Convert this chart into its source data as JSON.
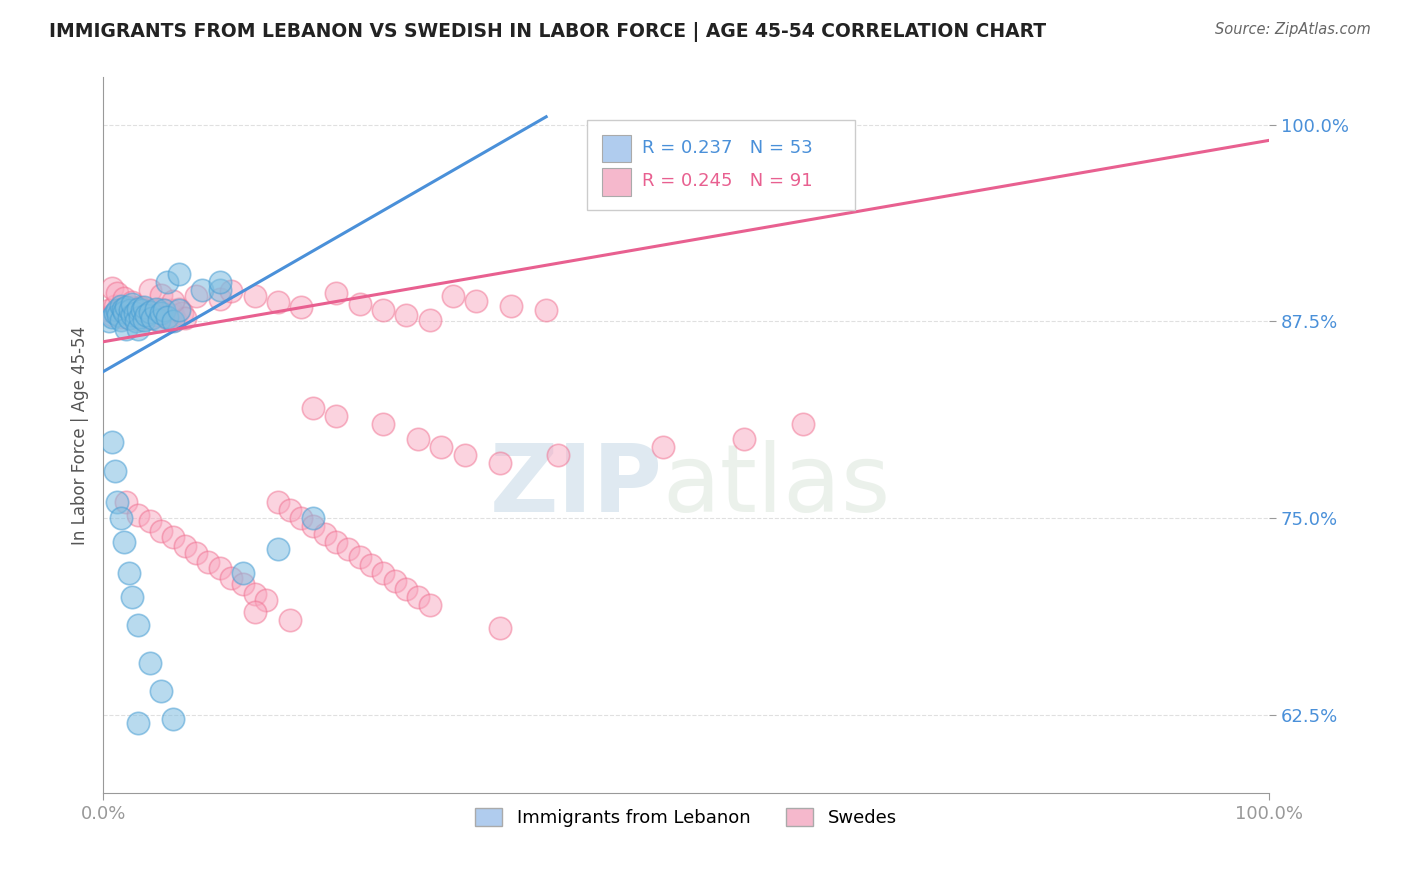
{
  "title": "IMMIGRANTS FROM LEBANON VS SWEDISH IN LABOR FORCE | AGE 45-54 CORRELATION CHART",
  "source_text": "Source: ZipAtlas.com",
  "ylabel": "In Labor Force | Age 45-54",
  "watermark_zip": "ZIP",
  "watermark_atlas": "atlas",
  "xlim": [
    0.0,
    1.0
  ],
  "ylim": [
    0.575,
    1.03
  ],
  "x_tick_labels": [
    "0.0%",
    "100.0%"
  ],
  "x_tick_positions": [
    0.0,
    1.0
  ],
  "y_tick_labels": [
    "62.5%",
    "75.0%",
    "87.5%",
    "100.0%"
  ],
  "y_tick_positions": [
    0.625,
    0.75,
    0.875,
    1.0
  ],
  "legend_label1": "Immigrants from Lebanon",
  "legend_label2": "Swedes",
  "R1": 0.237,
  "N1": 53,
  "R2": 0.245,
  "N2": 91,
  "color1": "#7fbde0",
  "color2": "#f9a8c0",
  "color1_edge": "#4a9fd4",
  "color2_edge": "#f07090",
  "line_color1": "#4a90d9",
  "line_color2": "#e86090",
  "title_color": "#222222",
  "source_color": "#666666",
  "axis_color": "#999999",
  "grid_color": "#dddddd",
  "background_color": "#ffffff",
  "legend_box_color1": "#b0ccee",
  "legend_box_color2": "#f5b8cc",
  "blue_x": [
    0.005,
    0.008,
    0.01,
    0.012,
    0.013,
    0.015,
    0.015,
    0.017,
    0.018,
    0.02,
    0.02,
    0.022,
    0.023,
    0.025,
    0.025,
    0.027,
    0.028,
    0.03,
    0.03,
    0.032,
    0.033,
    0.035,
    0.035,
    0.037,
    0.04,
    0.042,
    0.045,
    0.048,
    0.05,
    0.052,
    0.055,
    0.06,
    0.065,
    0.008,
    0.01,
    0.012,
    0.015,
    0.018,
    0.022,
    0.025,
    0.03,
    0.04,
    0.05,
    0.06,
    0.12,
    0.15,
    0.18,
    0.055,
    0.065,
    0.085,
    0.1,
    0.1,
    0.03
  ],
  "blue_y": [
    0.875,
    0.878,
    0.88,
    0.882,
    0.879,
    0.885,
    0.876,
    0.883,
    0.881,
    0.884,
    0.87,
    0.877,
    0.882,
    0.879,
    0.886,
    0.88,
    0.875,
    0.883,
    0.87,
    0.878,
    0.882,
    0.876,
    0.884,
    0.879,
    0.881,
    0.877,
    0.883,
    0.876,
    0.88,
    0.882,
    0.878,
    0.875,
    0.882,
    0.798,
    0.78,
    0.76,
    0.75,
    0.735,
    0.715,
    0.7,
    0.682,
    0.658,
    0.64,
    0.622,
    0.715,
    0.73,
    0.75,
    0.9,
    0.905,
    0.895,
    0.895,
    0.9,
    0.62
  ],
  "pink_x": [
    0.005,
    0.008,
    0.01,
    0.012,
    0.015,
    0.018,
    0.02,
    0.022,
    0.025,
    0.028,
    0.03,
    0.032,
    0.035,
    0.037,
    0.04,
    0.042,
    0.045,
    0.048,
    0.05,
    0.052,
    0.055,
    0.058,
    0.06,
    0.062,
    0.065,
    0.068,
    0.07,
    0.008,
    0.012,
    0.018,
    0.025,
    0.032,
    0.04,
    0.05,
    0.06,
    0.08,
    0.1,
    0.11,
    0.13,
    0.15,
    0.17,
    0.2,
    0.22,
    0.24,
    0.26,
    0.28,
    0.3,
    0.32,
    0.35,
    0.38,
    0.18,
    0.2,
    0.24,
    0.27,
    0.29,
    0.31,
    0.34,
    0.39,
    0.48,
    0.55,
    0.6,
    0.02,
    0.03,
    0.04,
    0.05,
    0.06,
    0.07,
    0.08,
    0.09,
    0.1,
    0.11,
    0.12,
    0.13,
    0.14,
    0.15,
    0.16,
    0.17,
    0.18,
    0.19,
    0.2,
    0.21,
    0.22,
    0.23,
    0.24,
    0.25,
    0.26,
    0.27,
    0.28,
    0.13,
    0.16,
    0.34
  ],
  "pink_y": [
    0.882,
    0.879,
    0.885,
    0.881,
    0.878,
    0.883,
    0.88,
    0.877,
    0.884,
    0.879,
    0.882,
    0.876,
    0.883,
    0.88,
    0.877,
    0.882,
    0.879,
    0.875,
    0.883,
    0.88,
    0.877,
    0.882,
    0.879,
    0.876,
    0.883,
    0.88,
    0.877,
    0.896,
    0.893,
    0.89,
    0.887,
    0.884,
    0.895,
    0.892,
    0.888,
    0.891,
    0.889,
    0.894,
    0.891,
    0.887,
    0.884,
    0.893,
    0.886,
    0.882,
    0.879,
    0.876,
    0.891,
    0.888,
    0.885,
    0.882,
    0.82,
    0.815,
    0.81,
    0.8,
    0.795,
    0.79,
    0.785,
    0.79,
    0.795,
    0.8,
    0.81,
    0.76,
    0.752,
    0.748,
    0.742,
    0.738,
    0.732,
    0.728,
    0.722,
    0.718,
    0.712,
    0.708,
    0.702,
    0.698,
    0.76,
    0.755,
    0.75,
    0.745,
    0.74,
    0.735,
    0.73,
    0.725,
    0.72,
    0.715,
    0.71,
    0.705,
    0.7,
    0.695,
    0.69,
    0.685,
    0.68
  ],
  "trendline1_x": [
    0.0,
    0.38
  ],
  "trendline1_y": [
    0.843,
    1.005
  ],
  "trendline2_x": [
    0.0,
    1.0
  ],
  "trendline2_y": [
    0.862,
    0.99
  ]
}
